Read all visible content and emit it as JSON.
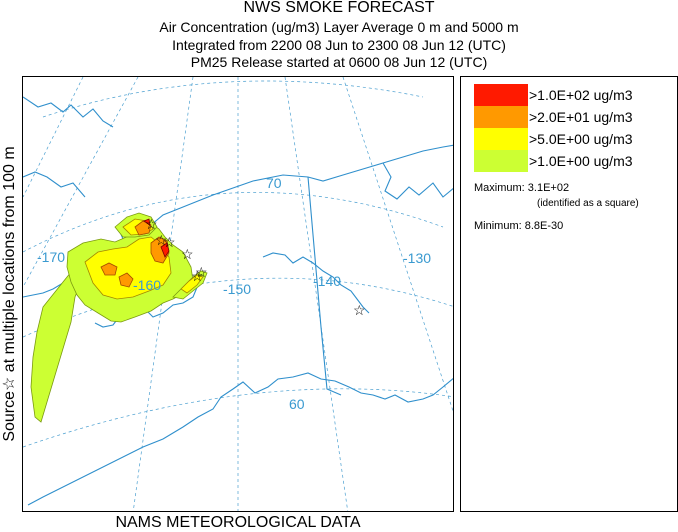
{
  "header": {
    "title": "NWS SMOKE FORECAST",
    "line2": "Air Concentration (ug/m3) Layer Average     0 m and  5000 m",
    "line3": "Integrated from 2200 08 Jun to 2300 08 Jun 12 (UTC)",
    "line4": "PM25 Release started at 0600 08 Jun 12 (UTC)"
  },
  "side_label": "Source☆ at multiple locations  from   100 m",
  "footer": "NAMS METEOROLOGICAL DATA",
  "legend": {
    "items": [
      {
        "label": ">1.0E+02 ug/m3",
        "color": "#ff1a00"
      },
      {
        "label": ">2.0E+01 ug/m3",
        "color": "#ff9900"
      },
      {
        "label": ">5.0E+00 ug/m3",
        "color": "#ffff00"
      },
      {
        "label": ">1.0E+00 ug/m3",
        "color": "#ccff33"
      }
    ],
    "maximum": "Maximum: 3.1E+02",
    "maximum_note": "(identified as a square)",
    "minimum": "Minimum: 8.8E-30"
  },
  "map": {
    "grid_labels": {
      "lon_170": "-170",
      "lon_160": "-160",
      "lon_150": "-150",
      "lon_140": "-140",
      "lon_130": "-130",
      "lat_70": "70",
      "lat_60": "60"
    },
    "marker_symbol": "☆"
  }
}
